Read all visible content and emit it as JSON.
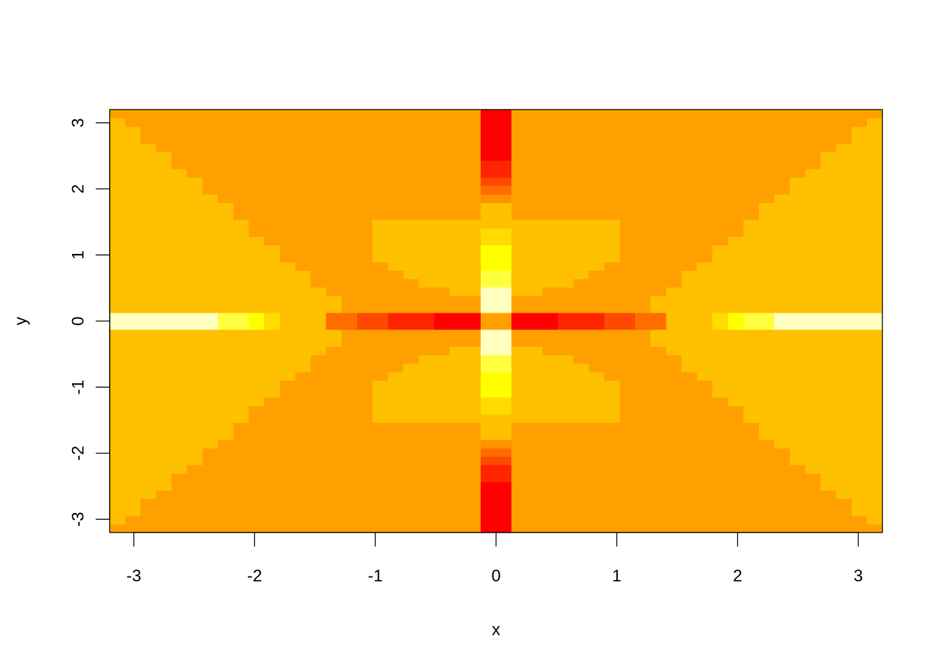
{
  "chart_data": {
    "type": "heatmap",
    "title": "",
    "xlabel": "x",
    "ylabel": "y",
    "xlim": [
      -3.2,
      3.2
    ],
    "ylim": [
      -3.2,
      3.2
    ],
    "x_ticks": [
      -3,
      -2,
      -1,
      0,
      1,
      2,
      3
    ],
    "y_ticks": [
      -3,
      -2,
      -1,
      0,
      1,
      2,
      3
    ],
    "x_tick_labels": [
      "-3",
      "-2",
      "-1",
      "0",
      "1",
      "2",
      "3"
    ],
    "y_tick_labels": [
      "-3",
      "-2",
      "-1",
      "0",
      "1",
      "2",
      "3"
    ],
    "grid": false,
    "legend": "none",
    "grid_cells": 50,
    "color_scale": "heat.colors",
    "palette": [
      "#FF0000",
      "#FF2400",
      "#FF4900",
      "#FF6D00",
      "#FF9200",
      "#FFB600",
      "#FFDB00",
      "#FFFF00",
      "#FFFF40",
      "#FFFFBF"
    ],
    "regions": {
      "outer_wedge_color": "#FFC000",
      "diagonal_band_color": "#FFA000",
      "center_cell_color": "#FFA000"
    }
  }
}
